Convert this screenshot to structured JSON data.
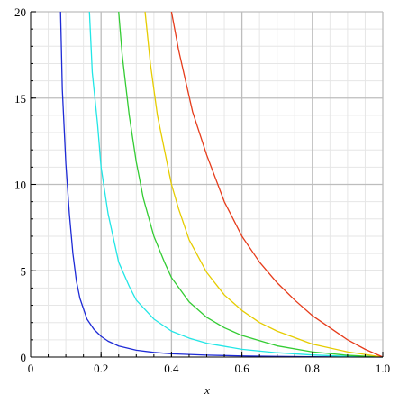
{
  "chart_data": {
    "type": "line",
    "xlabel": "x",
    "ylabel": "",
    "xlim": [
      0,
      1.0
    ],
    "ylim": [
      0,
      20
    ],
    "grid": true,
    "x_ticks": [
      {
        "value": 0,
        "label": "0"
      },
      {
        "value": 0.2,
        "label": "0.2"
      },
      {
        "value": 0.4,
        "label": "0.4"
      },
      {
        "value": 0.6,
        "label": "0.6"
      },
      {
        "value": 0.8,
        "label": "0.8"
      },
      {
        "value": 1.0,
        "label": "1.0"
      }
    ],
    "y_ticks": [
      {
        "value": 0,
        "label": "0"
      },
      {
        "value": 5,
        "label": "5"
      },
      {
        "value": 10,
        "label": "10"
      },
      {
        "value": 15,
        "label": "15"
      },
      {
        "value": 20,
        "label": "20"
      }
    ],
    "series": [
      {
        "color": "#1e2bd6",
        "x": [
          0.085,
          0.09,
          0.1,
          0.11,
          0.12,
          0.13,
          0.14,
          0.16,
          0.18,
          0.2,
          0.22,
          0.25,
          0.3,
          0.35,
          0.4,
          0.5,
          0.6,
          0.7,
          0.8,
          0.9,
          1.0
        ],
        "y": [
          20.0,
          15.5,
          11.2,
          8.3,
          6.0,
          4.4,
          3.4,
          2.2,
          1.6,
          1.2,
          0.92,
          0.64,
          0.4,
          0.27,
          0.19,
          0.11,
          0.065,
          0.035,
          0.015,
          0.005,
          0.0
        ]
      },
      {
        "color": "#22e6e6",
        "x": [
          0.167,
          0.175,
          0.19,
          0.2,
          0.22,
          0.25,
          0.28,
          0.3,
          0.35,
          0.4,
          0.45,
          0.5,
          0.6,
          0.7,
          0.8,
          0.9,
          1.0
        ],
        "y": [
          20.0,
          16.5,
          13.5,
          11.0,
          8.3,
          5.5,
          4.1,
          3.3,
          2.2,
          1.5,
          1.1,
          0.8,
          0.45,
          0.25,
          0.12,
          0.04,
          0.0
        ]
      },
      {
        "color": "#33cc33",
        "x": [
          0.25,
          0.26,
          0.28,
          0.3,
          0.32,
          0.35,
          0.38,
          0.4,
          0.45,
          0.5,
          0.55,
          0.6,
          0.7,
          0.8,
          0.9,
          1.0
        ],
        "y": [
          20.0,
          17.5,
          14.0,
          11.3,
          9.2,
          7.0,
          5.5,
          4.6,
          3.2,
          2.3,
          1.7,
          1.25,
          0.65,
          0.3,
          0.1,
          0.0
        ]
      },
      {
        "color": "#e6cc00",
        "x": [
          0.325,
          0.34,
          0.36,
          0.38,
          0.4,
          0.42,
          0.45,
          0.5,
          0.55,
          0.6,
          0.65,
          0.7,
          0.8,
          0.9,
          1.0
        ],
        "y": [
          20.0,
          17.0,
          14.0,
          12.0,
          10.0,
          8.6,
          6.8,
          4.9,
          3.6,
          2.7,
          2.0,
          1.5,
          0.75,
          0.3,
          0.0
        ]
      },
      {
        "color": "#e63b1a",
        "x": [
          0.4,
          0.42,
          0.44,
          0.46,
          0.5,
          0.55,
          0.6,
          0.65,
          0.7,
          0.75,
          0.8,
          0.85,
          0.9,
          0.95,
          1.0
        ],
        "y": [
          20.0,
          17.8,
          16.0,
          14.2,
          11.7,
          9.0,
          7.0,
          5.5,
          4.3,
          3.3,
          2.4,
          1.7,
          1.0,
          0.45,
          0.0
        ]
      }
    ]
  }
}
